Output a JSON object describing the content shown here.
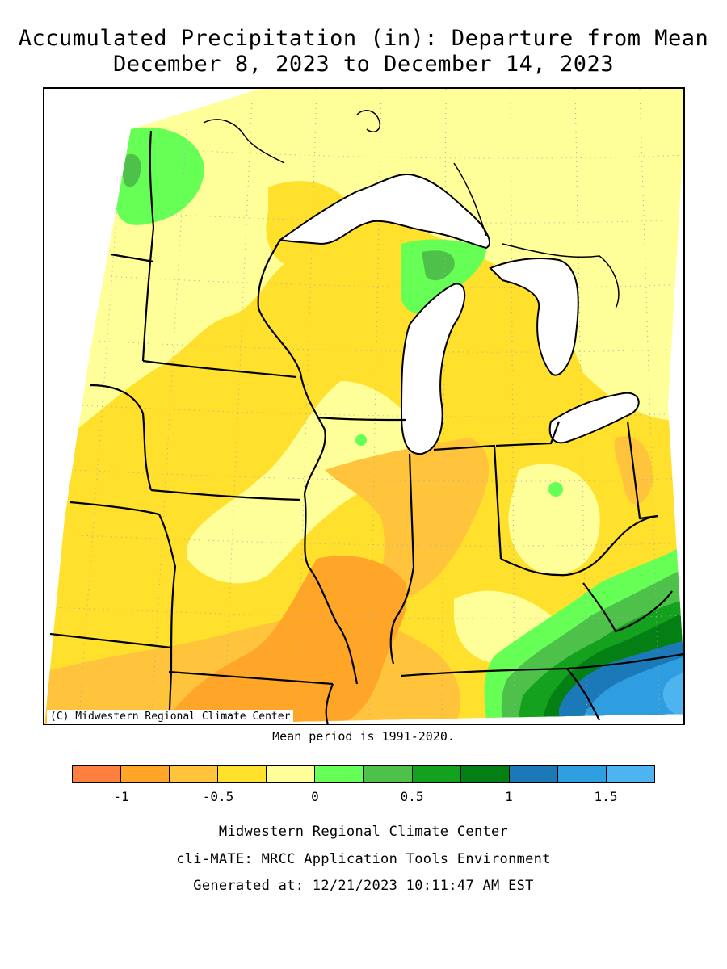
{
  "title": {
    "line1": "Accumulated Precipitation (in): Departure from Mean",
    "line2": "December 8, 2023 to December 14, 2023"
  },
  "map": {
    "region": "Midwest United States",
    "copyright": "(C) Midwestern Regional Climate Center",
    "mean_period": "Mean period is 1991-2020.",
    "colors": {
      "below_-1": "#ff7f3f",
      "-1_to_-0.75": "#ffa629",
      "-0.75_to_-0.5": "#ffc43c",
      "-0.5_to_-0.25": "#ffe02c",
      "-0.25_to_0": "#ffff99",
      "0_to_0.25": "#66ff55",
      "0.25_to_0.5": "#4dc14a",
      "0.5_to_0.75": "#13a11e",
      "0.75_to_1": "#037f13",
      "1_to_1.25": "#1a79b6",
      "1.25_to_1.5": "#2f9ee0",
      "above_1.5": "#4db4f0",
      "water": "#ffffff"
    }
  },
  "legend": {
    "swatches": [
      "#ff7f3f",
      "#ffa629",
      "#ffc43c",
      "#ffe02c",
      "#ffff99",
      "#66ff55",
      "#4dc14a",
      "#13a11e",
      "#037f13",
      "#1a79b6",
      "#2f9ee0",
      "#4db4f0"
    ],
    "tick_labels": [
      "-1",
      "-0.5",
      "0",
      "0.5",
      "1",
      "1.5"
    ]
  },
  "footer": {
    "line1": "Midwestern Regional Climate Center",
    "line2": "cli-MATE: MRCC Application Tools Environment",
    "line3": "Generated at: 12/21/2023 10:11:47 AM EST"
  }
}
